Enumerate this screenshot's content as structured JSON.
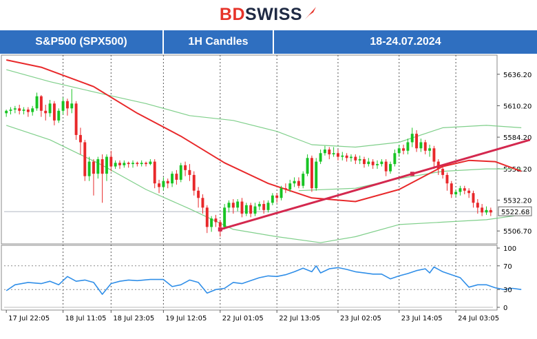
{
  "brand": {
    "name_part1": "BD",
    "name_part2": "SWISS",
    "primary_color": "#e63329",
    "secondary_color": "#1f2a44"
  },
  "header": {
    "instrument": "S&P500 (SPX500)",
    "timeframe": "1H Candles",
    "period": "18-24.07.2024",
    "bar_color": "#2f6fc0"
  },
  "chart_data": [
    {
      "type": "candlestick",
      "indicators": [
        "moving average (red)",
        "bollinger bands (green)",
        "trendline (crimson)"
      ],
      "price_ticks": [
        "5636.20",
        "5610.20",
        "5584.20",
        "5558.20",
        "5532.20",
        "5506.70"
      ],
      "current_price": "5522.68",
      "ylim": [
        5496,
        5652
      ],
      "x_ticks": [
        "17 Jul 22:05",
        "18 Jul 11:05",
        "18 Jul 23:05",
        "19 Jul 12:05",
        "22 Jul 01:05",
        "22 Jul 13:05",
        "23 Jul 02:05",
        "23 Jul 14:05",
        "24 Jul 03:05"
      ],
      "candles": [
        [
          5604,
          5606,
          5601,
          5607
        ],
        [
          5606,
          5607,
          5603,
          5609
        ],
        [
          5607,
          5608,
          5604,
          5610
        ],
        [
          5608,
          5606,
          5603,
          5611
        ],
        [
          5606,
          5607,
          5603,
          5609
        ],
        [
          5607,
          5605,
          5601,
          5609
        ],
        [
          5605,
          5608,
          5602,
          5610
        ],
        [
          5608,
          5618,
          5606,
          5621
        ],
        [
          5618,
          5606,
          5601,
          5619
        ],
        [
          5606,
          5604,
          5598,
          5611
        ],
        [
          5604,
          5612,
          5601,
          5615
        ],
        [
          5612,
          5598,
          5594,
          5614
        ],
        [
          5598,
          5606,
          5596,
          5608
        ],
        [
          5606,
          5614,
          5603,
          5617
        ],
        [
          5614,
          5608,
          5602,
          5616
        ],
        [
          5608,
          5612,
          5604,
          5624
        ],
        [
          5612,
          5586,
          5582,
          5614
        ],
        [
          5586,
          5580,
          5570,
          5592
        ],
        [
          5580,
          5552,
          5548,
          5582
        ],
        [
          5552,
          5564,
          5548,
          5568
        ],
        [
          5564,
          5554,
          5536,
          5566
        ],
        [
          5554,
          5566,
          5550,
          5568
        ],
        [
          5566,
          5554,
          5530,
          5570
        ],
        [
          5554,
          5568,
          5548,
          5570
        ],
        [
          5568,
          5560,
          5556,
          5573
        ],
        [
          5560,
          5563,
          5558,
          5565
        ],
        [
          5563,
          5561,
          5558,
          5565
        ],
        [
          5561,
          5563,
          5559,
          5565
        ],
        [
          5563,
          5562,
          5559,
          5564
        ],
        [
          5562,
          5563,
          5559,
          5565
        ],
        [
          5563,
          5562,
          5560,
          5564
        ],
        [
          5562,
          5563,
          5560,
          5565
        ],
        [
          5563,
          5562,
          5560,
          5564
        ],
        [
          5562,
          5564,
          5561,
          5566
        ],
        [
          5564,
          5546,
          5542,
          5566
        ],
        [
          5546,
          5543,
          5538,
          5549
        ],
        [
          5543,
          5548,
          5540,
          5551
        ],
        [
          5548,
          5546,
          5542,
          5550
        ],
        [
          5546,
          5554,
          5543,
          5556
        ],
        [
          5554,
          5549,
          5545,
          5557
        ],
        [
          5549,
          5561,
          5547,
          5563
        ],
        [
          5561,
          5557,
          5552,
          5564
        ],
        [
          5557,
          5553,
          5548,
          5562
        ],
        [
          5553,
          5540,
          5536,
          5556
        ],
        [
          5540,
          5534,
          5526,
          5543
        ],
        [
          5534,
          5526,
          5521,
          5537
        ],
        [
          5526,
          5510,
          5505,
          5528
        ],
        [
          5510,
          5517,
          5506,
          5519
        ],
        [
          5517,
          5514,
          5510,
          5520
        ],
        [
          5514,
          5510,
          5502,
          5516
        ],
        [
          5510,
          5526,
          5508,
          5529
        ],
        [
          5526,
          5530,
          5522,
          5532
        ],
        [
          5530,
          5526,
          5521,
          5533
        ],
        [
          5526,
          5531,
          5523,
          5533
        ],
        [
          5531,
          5521,
          5518,
          5534
        ],
        [
          5521,
          5528,
          5519,
          5530
        ],
        [
          5528,
          5521,
          5518,
          5530
        ],
        [
          5521,
          5527,
          5519,
          5530
        ],
        [
          5527,
          5529,
          5524,
          5531
        ],
        [
          5529,
          5524,
          5521,
          5532
        ],
        [
          5524,
          5530,
          5522,
          5532
        ],
        [
          5530,
          5536,
          5528,
          5538
        ],
        [
          5536,
          5534,
          5530,
          5538
        ],
        [
          5534,
          5542,
          5532,
          5544
        ],
        [
          5542,
          5541,
          5538,
          5546
        ],
        [
          5541,
          5546,
          5539,
          5549
        ],
        [
          5546,
          5548,
          5543,
          5551
        ],
        [
          5548,
          5544,
          5542,
          5551
        ],
        [
          5544,
          5554,
          5542,
          5556
        ],
        [
          5554,
          5567,
          5552,
          5570
        ],
        [
          5567,
          5542,
          5539,
          5569
        ],
        [
          5542,
          5564,
          5540,
          5567
        ],
        [
          5564,
          5571,
          5562,
          5574
        ],
        [
          5571,
          5574,
          5569,
          5577
        ],
        [
          5574,
          5570,
          5566,
          5576
        ],
        [
          5570,
          5571,
          5568,
          5576
        ],
        [
          5571,
          5568,
          5565,
          5574
        ],
        [
          5568,
          5569,
          5565,
          5572
        ],
        [
          5569,
          5567,
          5564,
          5571
        ],
        [
          5567,
          5568,
          5564,
          5570
        ],
        [
          5568,
          5565,
          5562,
          5570
        ],
        [
          5565,
          5566,
          5562,
          5569
        ],
        [
          5566,
          5562,
          5559,
          5568
        ],
        [
          5562,
          5564,
          5560,
          5567
        ],
        [
          5564,
          5561,
          5558,
          5566
        ],
        [
          5561,
          5562,
          5558,
          5565
        ],
        [
          5562,
          5564,
          5560,
          5566
        ],
        [
          5564,
          5556,
          5552,
          5566
        ],
        [
          5556,
          5562,
          5554,
          5564
        ],
        [
          5562,
          5571,
          5560,
          5574
        ],
        [
          5571,
          5575,
          5568,
          5578
        ],
        [
          5575,
          5573,
          5570,
          5578
        ],
        [
          5573,
          5580,
          5570,
          5583
        ],
        [
          5580,
          5587,
          5576,
          5592
        ],
        [
          5587,
          5575,
          5572,
          5590
        ],
        [
          5575,
          5580,
          5572,
          5583
        ],
        [
          5580,
          5573,
          5570,
          5582
        ],
        [
          5573,
          5575,
          5568,
          5578
        ],
        [
          5575,
          5564,
          5558,
          5577
        ],
        [
          5564,
          5558,
          5553,
          5566
        ],
        [
          5558,
          5553,
          5550,
          5560
        ],
        [
          5553,
          5546,
          5540,
          5555
        ],
        [
          5546,
          5537,
          5534,
          5548
        ],
        [
          5537,
          5539,
          5535,
          5541
        ],
        [
          5539,
          5542,
          5536,
          5544
        ],
        [
          5542,
          5540,
          5537,
          5544
        ],
        [
          5540,
          5538,
          5534,
          5542
        ],
        [
          5538,
          5530,
          5526,
          5540
        ],
        [
          5530,
          5526,
          5521,
          5533
        ],
        [
          5526,
          5522,
          5519,
          5529
        ],
        [
          5522,
          5524,
          5520,
          5527
        ],
        [
          5524,
          5522,
          5519,
          5526
        ]
      ],
      "moving_average": [
        [
          0,
          5648
        ],
        [
          8,
          5642
        ],
        [
          20,
          5626
        ],
        [
          30,
          5604
        ],
        [
          40,
          5585
        ],
        [
          50,
          5563
        ],
        [
          60,
          5546
        ],
        [
          70,
          5534
        ],
        [
          80,
          5531
        ],
        [
          90,
          5541
        ],
        [
          100,
          5560
        ],
        [
          106,
          5565
        ],
        [
          112,
          5564
        ],
        [
          118,
          5556
        ]
      ],
      "bollinger_upper": [
        [
          0,
          5640
        ],
        [
          10,
          5630
        ],
        [
          22,
          5620
        ],
        [
          32,
          5612
        ],
        [
          42,
          5602
        ],
        [
          52,
          5598
        ],
        [
          62,
          5589
        ],
        [
          70,
          5578
        ],
        [
          80,
          5576
        ],
        [
          90,
          5580
        ],
        [
          100,
          5592
        ],
        [
          110,
          5594
        ],
        [
          118,
          5592
        ]
      ],
      "bollinger_lower": [
        [
          0,
          5594
        ],
        [
          10,
          5582
        ],
        [
          22,
          5561
        ],
        [
          32,
          5541
        ],
        [
          42,
          5525
        ],
        [
          52,
          5508
        ],
        [
          62,
          5502
        ],
        [
          72,
          5497
        ],
        [
          80,
          5502
        ],
        [
          90,
          5512
        ],
        [
          100,
          5514
        ],
        [
          110,
          5516
        ],
        [
          118,
          5520
        ]
      ],
      "bollinger_middle": [
        [
          67,
          5540
        ],
        [
          80,
          5542
        ],
        [
          90,
          5550
        ],
        [
          100,
          5556
        ],
        [
          110,
          5558
        ],
        [
          118,
          5558
        ]
      ],
      "trendline": [
        [
          49,
          5508
        ],
        [
          120,
          5582
        ]
      ]
    },
    {
      "type": "line",
      "indicator": "oscillator",
      "y_ticks": [
        "100",
        "70",
        "30",
        "0"
      ],
      "ylim": [
        0,
        100
      ],
      "values": [
        [
          0,
          28
        ],
        [
          2,
          38
        ],
        [
          5,
          42
        ],
        [
          8,
          40
        ],
        [
          10,
          44
        ],
        [
          12,
          38
        ],
        [
          14,
          52
        ],
        [
          16,
          44
        ],
        [
          18,
          46
        ],
        [
          20,
          42
        ],
        [
          22,
          22
        ],
        [
          24,
          40
        ],
        [
          26,
          44
        ],
        [
          28,
          46
        ],
        [
          30,
          45
        ],
        [
          33,
          47
        ],
        [
          36,
          47
        ],
        [
          38,
          35
        ],
        [
          40,
          38
        ],
        [
          42,
          46
        ],
        [
          44,
          42
        ],
        [
          46,
          24
        ],
        [
          48,
          30
        ],
        [
          50,
          32
        ],
        [
          52,
          42
        ],
        [
          54,
          40
        ],
        [
          56,
          45
        ],
        [
          58,
          50
        ],
        [
          60,
          53
        ],
        [
          62,
          52
        ],
        [
          64,
          55
        ],
        [
          66,
          60
        ],
        [
          68,
          66
        ],
        [
          70,
          60
        ],
        [
          71,
          70
        ],
        [
          72,
          58
        ],
        [
          74,
          65
        ],
        [
          76,
          67
        ],
        [
          78,
          64
        ],
        [
          80,
          60
        ],
        [
          82,
          58
        ],
        [
          84,
          56
        ],
        [
          86,
          56
        ],
        [
          88,
          48
        ],
        [
          90,
          53
        ],
        [
          92,
          57
        ],
        [
          94,
          62
        ],
        [
          96,
          65
        ],
        [
          97,
          58
        ],
        [
          98,
          68
        ],
        [
          100,
          60
        ],
        [
          102,
          55
        ],
        [
          104,
          50
        ],
        [
          106,
          34
        ],
        [
          108,
          38
        ],
        [
          110,
          38
        ],
        [
          112,
          33
        ],
        [
          114,
          30
        ],
        [
          116,
          32
        ],
        [
          118,
          30
        ]
      ]
    }
  ]
}
